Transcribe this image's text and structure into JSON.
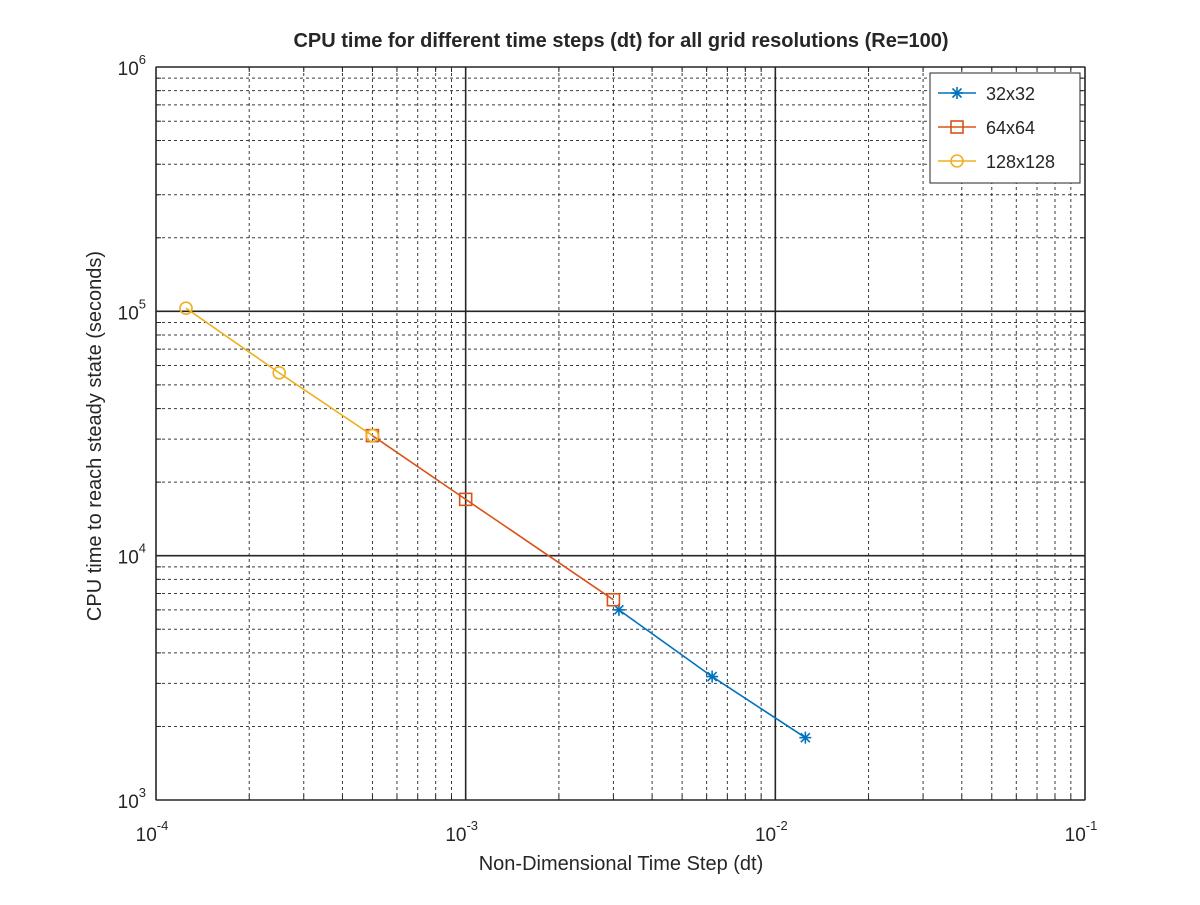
{
  "chart_data": {
    "type": "line",
    "title": "CPU time for different time steps (dt) for all grid resolutions (Re=100)",
    "xlabel": "Non-Dimensional Time Step (dt)",
    "ylabel": "CPU time to reach steady state (seconds)",
    "xscale": "log",
    "yscale": "log",
    "xlim": [
      0.0001,
      0.1
    ],
    "ylim": [
      1000,
      1000000
    ],
    "grid": "major and minor",
    "legend_position": "top-right",
    "x_ticks": [
      {
        "base": "10",
        "exp": "-4",
        "value": 0.0001
      },
      {
        "base": "10",
        "exp": "-3",
        "value": 0.001
      },
      {
        "base": "10",
        "exp": "-2",
        "value": 0.01
      },
      {
        "base": "10",
        "exp": "-1",
        "value": 0.1
      }
    ],
    "y_ticks": [
      {
        "base": "10",
        "exp": "3",
        "value": 1000
      },
      {
        "base": "10",
        "exp": "4",
        "value": 10000
      },
      {
        "base": "10",
        "exp": "5",
        "value": 100000
      },
      {
        "base": "10",
        "exp": "6",
        "value": 1000000
      }
    ],
    "series": [
      {
        "name": "32x32",
        "color": "#0072BD",
        "marker": "asterisk",
        "x": [
          0.003125,
          0.00625,
          0.0125
        ],
        "y": [
          6000,
          3200,
          1800
        ]
      },
      {
        "name": "64x64",
        "color": "#D95319",
        "marker": "square",
        "x": [
          0.0005,
          0.001,
          0.003
        ],
        "y": [
          31000,
          17000,
          6600
        ]
      },
      {
        "name": "128x128",
        "color": "#EDB120",
        "marker": "circle",
        "x": [
          0.000125,
          0.00025,
          0.0005
        ],
        "y": [
          103000,
          56000,
          31000
        ]
      }
    ]
  }
}
